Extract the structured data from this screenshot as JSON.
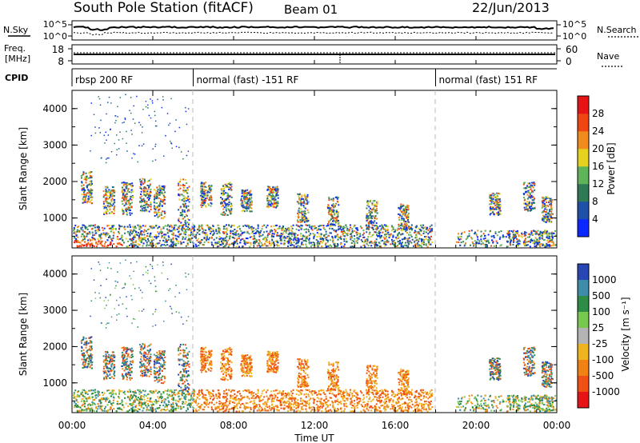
{
  "header": {
    "station": "South Pole Station (fitACF)",
    "beam": "Beam 01",
    "date": "22/Jun/2013"
  },
  "summary": {
    "nsky_label": "N.Sky",
    "nsearch_label": "N.Search",
    "nsky_tick_top": "10^5",
    "nsky_tick_bottom": "10^0",
    "freq_label_1": "Freq.",
    "freq_label_2": "[MHz]",
    "freq_tick_top": "18",
    "freq_tick_bottom": "8",
    "nave_label": "Nave",
    "nave_tick_top": "60",
    "nave_tick_bottom": "0",
    "cpid_label": "CPID",
    "cpid_segments": [
      {
        "start_hour": 0,
        "end_hour": 6,
        "label": "rbsp 200 RF"
      },
      {
        "start_hour": 6,
        "end_hour": 18,
        "label": "normal (fast) -151 RF"
      },
      {
        "start_hour": 18,
        "end_hour": 24,
        "label": "normal (fast) 151 RF"
      }
    ]
  },
  "chart_data": [
    {
      "type": "heatmap",
      "name": "power",
      "xlabel": "",
      "ylabel": "Slant Range [km]",
      "xlim": [
        0,
        24
      ],
      "ylim": [
        180,
        4500
      ],
      "y_ticks": [
        "1000",
        "2000",
        "3000",
        "4000"
      ],
      "colorbar": {
        "label": "Power [dB]",
        "ticks": [
          "4",
          "8",
          "12",
          "16",
          "20",
          "24",
          "28"
        ],
        "colors": [
          "#0a28ff",
          "#1e50a8",
          "#2d7a55",
          "#5fb45a",
          "#e6d21e",
          "#f08c1e",
          "#f04614",
          "#e61414"
        ]
      },
      "echo_bands": [
        {
          "start_hour": 0.0,
          "end_hour": 17.8,
          "range_min_km": 250,
          "range_max_km": 800,
          "value": "4-28 dB"
        },
        {
          "start_hour": 19.0,
          "end_hour": 24.0,
          "range_min_km": 250,
          "range_max_km": 700,
          "value": "4-28 dB"
        },
        {
          "start_hour": 0.3,
          "end_hour": 7.5,
          "range_min_km": 1000,
          "range_max_km": 2400,
          "value": "4-24 dB"
        }
      ]
    },
    {
      "type": "heatmap",
      "name": "velocity",
      "xlabel": "Time UT",
      "ylabel": "Slant Range [km]",
      "xlim": [
        0,
        24
      ],
      "ylim": [
        180,
        4500
      ],
      "x_ticks": [
        "00:00",
        "04:00",
        "08:00",
        "12:00",
        "16:00",
        "20:00",
        "00:00"
      ],
      "y_ticks": [
        "1000",
        "2000",
        "3000",
        "4000"
      ],
      "colorbar": {
        "label": "Velocity [m s⁻¹]",
        "ticks": [
          "1000",
          "500",
          "100",
          "25",
          "-25",
          "-100",
          "-500",
          "-1000"
        ],
        "colors": [
          "#2846b4",
          "#3c8caa",
          "#2d8c46",
          "#78c850",
          "#b4b4b4",
          "#f0b41e",
          "#f08214",
          "#f05014",
          "#e61414"
        ]
      }
    }
  ]
}
